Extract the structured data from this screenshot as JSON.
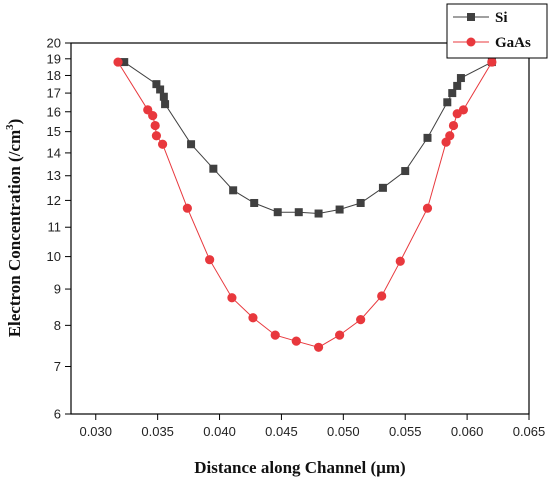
{
  "chart_data": {
    "type": "line",
    "xlabel": "Distance along Channel (µm)",
    "ylabel": "Electron Concentration (/cm",
    "ylabel_superscript": "3",
    "ylabel_suffix": ")",
    "xlim": [
      0.028,
      0.065
    ],
    "ylim": [
      6,
      20
    ],
    "xticks": [
      "0.030",
      "0.035",
      "0.040",
      "0.045",
      "0.050",
      "0.055",
      "0.060",
      "0.065"
    ],
    "xtick_values": [
      0.03,
      0.035,
      0.04,
      0.045,
      0.05,
      0.055,
      0.06,
      0.065
    ],
    "yticks": [
      "6",
      "7",
      "8",
      "9",
      "10",
      "11",
      "12",
      "13",
      "14",
      "15",
      "16",
      "17",
      "18",
      "19",
      "20"
    ],
    "ytick_values": [
      6,
      7,
      8,
      9,
      10,
      11,
      12,
      13,
      14,
      15,
      16,
      17,
      18,
      19,
      20
    ],
    "legend_position": "top-right",
    "grid": false,
    "series": [
      {
        "name": "Si",
        "marker": "square",
        "color": "#404040",
        "x": [
          0.0323,
          0.0349,
          0.0352,
          0.0355,
          0.0356,
          0.0377,
          0.0395,
          0.0411,
          0.0428,
          0.0447,
          0.0464,
          0.048,
          0.0497,
          0.0514,
          0.0532,
          0.055,
          0.0568,
          0.0584,
          0.0588,
          0.0592,
          0.0595,
          0.062
        ],
        "y": [
          18.8,
          17.5,
          17.2,
          16.8,
          16.4,
          14.4,
          13.3,
          12.4,
          11.9,
          11.55,
          11.55,
          11.5,
          11.65,
          11.9,
          12.5,
          13.2,
          14.7,
          16.5,
          17.0,
          17.4,
          17.85,
          18.8
        ]
      },
      {
        "name": "GaAs",
        "marker": "circle",
        "color": "#e8383d",
        "x": [
          0.0318,
          0.0342,
          0.0346,
          0.0348,
          0.0349,
          0.0354,
          0.0374,
          0.0392,
          0.041,
          0.0427,
          0.0445,
          0.0462,
          0.048,
          0.0497,
          0.0514,
          0.0531,
          0.0546,
          0.0568,
          0.0583,
          0.0586,
          0.0589,
          0.0592,
          0.0597,
          0.062
        ],
        "y": [
          18.8,
          16.1,
          15.8,
          15.3,
          14.8,
          14.4,
          11.7,
          9.9,
          8.75,
          8.2,
          7.75,
          7.6,
          7.45,
          7.75,
          8.15,
          8.8,
          9.85,
          11.7,
          14.5,
          14.8,
          15.3,
          15.9,
          16.1,
          18.8
        ]
      }
    ]
  }
}
